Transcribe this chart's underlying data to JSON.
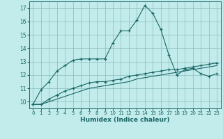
{
  "title": "",
  "xlabel": "Humidex (Indice chaleur)",
  "ylabel": "",
  "background_color": "#c2ecec",
  "grid_color": "#88bbbb",
  "line_color": "#1a6666",
  "xlim": [
    -0.5,
    23.5
  ],
  "ylim": [
    9.5,
    17.5
  ],
  "yticks": [
    10,
    11,
    12,
    13,
    14,
    15,
    16,
    17
  ],
  "xticks": [
    0,
    1,
    2,
    3,
    4,
    5,
    6,
    7,
    8,
    9,
    10,
    11,
    12,
    13,
    14,
    15,
    16,
    17,
    18,
    19,
    20,
    21,
    22,
    23
  ],
  "series1_x": [
    0,
    1,
    2,
    3,
    4,
    5,
    6,
    7,
    8,
    9,
    10,
    11,
    12,
    13,
    14,
    15,
    16,
    17,
    18,
    19,
    20,
    21,
    22,
    23
  ],
  "series1_y": [
    9.8,
    10.9,
    11.5,
    12.3,
    12.7,
    13.1,
    13.2,
    13.2,
    13.2,
    13.2,
    14.4,
    15.3,
    15.3,
    16.1,
    17.2,
    16.6,
    15.4,
    13.5,
    12.0,
    12.4,
    12.5,
    12.1,
    11.9,
    12.1
  ],
  "series2_x": [
    0,
    1,
    2,
    3,
    4,
    5,
    6,
    7,
    8,
    9,
    10,
    11,
    12,
    13,
    14,
    15,
    16,
    17,
    18,
    19,
    20,
    21,
    22,
    23
  ],
  "series2_y": [
    9.8,
    9.8,
    10.2,
    10.5,
    10.8,
    11.0,
    11.2,
    11.4,
    11.5,
    11.5,
    11.6,
    11.7,
    11.9,
    12.0,
    12.1,
    12.2,
    12.3,
    12.4,
    12.4,
    12.5,
    12.6,
    12.7,
    12.8,
    12.9
  ],
  "series3_x": [
    0,
    1,
    2,
    3,
    4,
    5,
    6,
    7,
    8,
    9,
    10,
    11,
    12,
    13,
    14,
    15,
    16,
    17,
    18,
    19,
    20,
    21,
    22,
    23
  ],
  "series3_y": [
    9.8,
    9.8,
    10.0,
    10.2,
    10.4,
    10.6,
    10.8,
    11.0,
    11.1,
    11.2,
    11.3,
    11.4,
    11.5,
    11.7,
    11.8,
    11.9,
    12.0,
    12.1,
    12.2,
    12.3,
    12.4,
    12.5,
    12.6,
    12.7
  ]
}
